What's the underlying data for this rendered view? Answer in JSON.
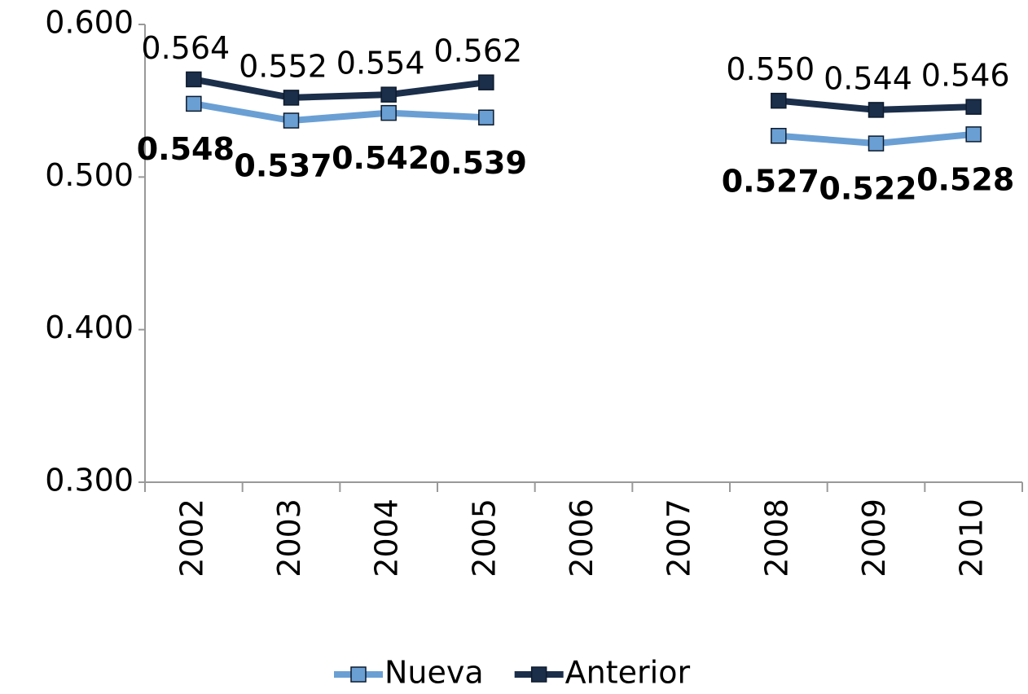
{
  "chart_data": {
    "type": "line",
    "categories": [
      "2002",
      "2003",
      "2004",
      "2005",
      "2006",
      "2007",
      "2008",
      "2009",
      "2010"
    ],
    "series": [
      {
        "name": "Nueva",
        "color": "#6a9fd4",
        "label_color": "#1f7bc4",
        "values": [
          0.548,
          0.537,
          0.542,
          0.539,
          null,
          null,
          0.527,
          0.522,
          0.528
        ],
        "value_labels": [
          "0.548",
          "0.537",
          "0.542",
          "0.539",
          null,
          null,
          "0.527",
          "0.522",
          "0.528"
        ]
      },
      {
        "name": "Anterior",
        "color": "#1b2e4a",
        "label_color": "#1b2e4a",
        "values": [
          0.564,
          0.552,
          0.554,
          0.562,
          null,
          null,
          0.55,
          0.544,
          0.546
        ],
        "value_labels": [
          "0.564",
          "0.552",
          "0.554",
          "0.562",
          null,
          null,
          "0.550",
          "0.544",
          "0.546"
        ]
      }
    ],
    "ylim": [
      0.3,
      0.6
    ],
    "yticks": [
      {
        "value": 0.3,
        "label": "0.300"
      },
      {
        "value": 0.4,
        "label": "0.400"
      },
      {
        "value": 0.5,
        "label": "0.500"
      },
      {
        "value": 0.6,
        "label": "0.600"
      }
    ],
    "grid": false,
    "legend": "bottom"
  }
}
